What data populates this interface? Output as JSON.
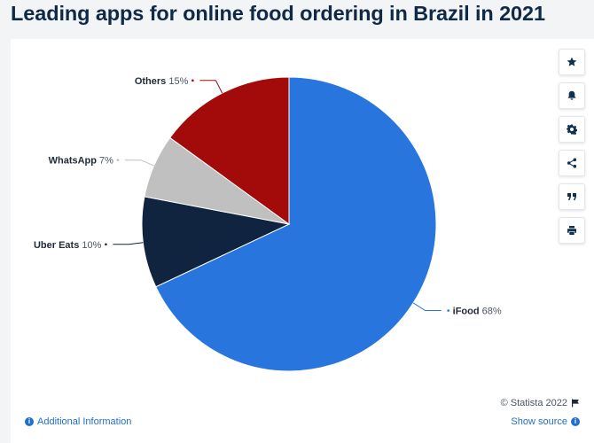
{
  "page": {
    "title": "Leading apps for online food ordering in Brazil in 2021"
  },
  "chart_data": {
    "type": "pie",
    "title": "Leading apps for online food ordering in Brazil in 2021",
    "slices": [
      {
        "label": "iFood",
        "value": 68,
        "display": "68%",
        "color": "#2876dd"
      },
      {
        "label": "Uber Eats",
        "value": 10,
        "display": "10%",
        "color": "#10243f"
      },
      {
        "label": "WhatsApp",
        "value": 7,
        "display": "7%",
        "color": "#c0c0c0"
      },
      {
        "label": "Others",
        "value": 15,
        "display": "15%",
        "color": "#a30b0b"
      }
    ],
    "start_angle_deg": 0,
    "direction": "clockwise"
  },
  "toolbar": {
    "buttons": [
      {
        "name": "star-icon"
      },
      {
        "name": "bell-icon"
      },
      {
        "name": "gear-icon"
      },
      {
        "name": "share-icon"
      },
      {
        "name": "quote-icon"
      },
      {
        "name": "print-icon"
      }
    ]
  },
  "footer": {
    "copyright": "© Statista 2022",
    "additional_info": "Additional Information",
    "show_source": "Show source"
  }
}
